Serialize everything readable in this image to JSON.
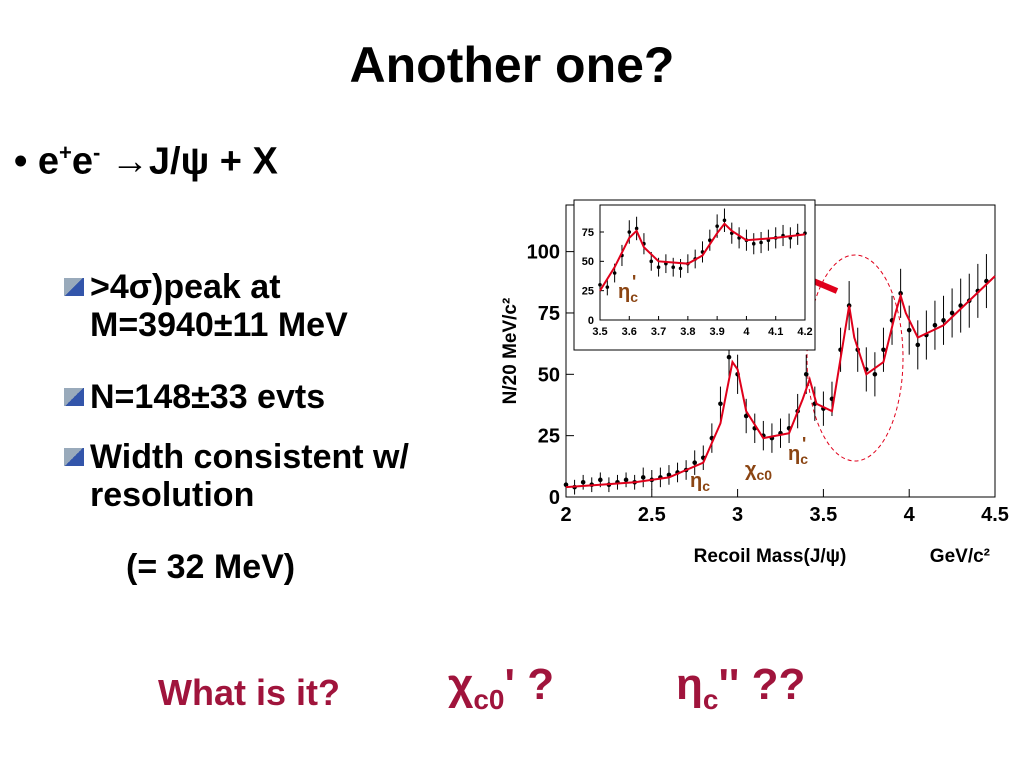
{
  "title": "Another one?",
  "bullet": {
    "parts": [
      "e",
      "+",
      "e",
      "-",
      "→",
      "J/ψ + X"
    ]
  },
  "sub_bullets": [
    ">4σ)peak at M=3940±11 MeV",
    "N=148±33 evts",
    "Width consistent w/ resolution",
    "(= 32 MeV)"
  ],
  "question": {
    "text": "What is it?",
    "option1": {
      "symbol": "χ",
      "sub": "c0",
      "prime": "'",
      "mark": "?"
    },
    "option2": {
      "symbol": "η",
      "sub": "c",
      "prime": "''",
      "mark": "??"
    }
  },
  "chart_data": [
    {
      "type": "scatter",
      "y_label": "N/20 MeV/c²",
      "x_label": "Recoil Mass(J/ψ)",
      "x_unit": "GeV/c²",
      "xlim": [
        2,
        4.5
      ],
      "ylim": [
        0,
        119
      ],
      "xticks": [
        2,
        2.5,
        3,
        3.5,
        4,
        4.5
      ],
      "yticks": [
        0,
        25,
        50,
        75,
        100
      ],
      "series": [
        {
          "color": "#000000",
          "x": [
            2.0,
            2.05,
            2.1,
            2.15,
            2.2,
            2.25,
            2.3,
            2.35,
            2.4,
            2.45,
            2.5,
            2.55,
            2.6,
            2.65,
            2.7,
            2.75,
            2.8,
            2.85,
            2.9,
            2.95,
            3.0,
            3.05,
            3.1,
            3.15,
            3.2,
            3.25,
            3.3,
            3.35,
            3.4,
            3.45,
            3.5,
            3.55,
            3.6,
            3.65,
            3.7,
            3.75,
            3.8,
            3.85,
            3.9,
            3.95,
            4.0,
            4.05,
            4.1,
            4.15,
            4.2,
            4.25,
            4.3,
            4.35,
            4.4,
            4.45
          ],
          "values": [
            5,
            4,
            6,
            5,
            7,
            5,
            6,
            7,
            6,
            8,
            7,
            8,
            9,
            10,
            11,
            14,
            16,
            24,
            38,
            57,
            50,
            33,
            28,
            25,
            24,
            26,
            28,
            35,
            50,
            38,
            36,
            40,
            60,
            78,
            60,
            52,
            50,
            60,
            72,
            83,
            68,
            62,
            66,
            70,
            72,
            75,
            78,
            80,
            84,
            88
          ],
          "errors": [
            3,
            3,
            3,
            3,
            3,
            3,
            3,
            3,
            3,
            4,
            4,
            4,
            4,
            4,
            4,
            5,
            5,
            6,
            7,
            8,
            8,
            7,
            6,
            6,
            6,
            6,
            6,
            7,
            8,
            7,
            7,
            7,
            9,
            10,
            9,
            9,
            9,
            9,
            10,
            10,
            10,
            10,
            10,
            10,
            10,
            10,
            11,
            11,
            11,
            11
          ]
        }
      ],
      "fit": {
        "color": "#e0001b",
        "x": [
          2.0,
          2.2,
          2.4,
          2.6,
          2.8,
          2.9,
          2.97,
          3.0,
          3.05,
          3.15,
          3.3,
          3.38,
          3.42,
          3.46,
          3.55,
          3.62,
          3.65,
          3.68,
          3.75,
          3.85,
          3.92,
          3.95,
          3.98,
          4.05,
          4.2,
          4.5
        ],
        "values": [
          4,
          5,
          6,
          8,
          14,
          30,
          55,
          52,
          35,
          24,
          26,
          40,
          48,
          38,
          35,
          65,
          78,
          65,
          50,
          55,
          75,
          82,
          75,
          65,
          70,
          90
        ]
      },
      "annotations": [
        {
          "symbol": "η",
          "sub": "c"
        },
        {
          "symbol": "χ",
          "sub": "c0"
        },
        {
          "symbol": "η",
          "sub": "c",
          "prime": "'"
        }
      ]
    },
    {
      "type": "scatter",
      "xlim": [
        3.5,
        4.2
      ],
      "ylim": [
        0,
        98
      ],
      "xticks": [
        3.5,
        3.6,
        3.7,
        3.8,
        3.9,
        4,
        4.1,
        4.2
      ],
      "yticks": [
        0,
        25,
        50,
        75
      ],
      "series": [
        {
          "color": "#000000",
          "x": [
            3.5,
            3.525,
            3.55,
            3.575,
            3.6,
            3.625,
            3.65,
            3.675,
            3.7,
            3.725,
            3.75,
            3.775,
            3.8,
            3.825,
            3.85,
            3.875,
            3.9,
            3.925,
            3.95,
            3.975,
            4.0,
            4.025,
            4.05,
            4.075,
            4.1,
            4.125,
            4.15,
            4.175,
            4.2
          ],
          "values": [
            30,
            28,
            40,
            55,
            75,
            78,
            65,
            50,
            45,
            48,
            45,
            44,
            48,
            52,
            58,
            68,
            80,
            85,
            74,
            70,
            68,
            65,
            66,
            68,
            70,
            72,
            70,
            73,
            74
          ],
          "errors": [
            7,
            7,
            8,
            9,
            10,
            10,
            9,
            8,
            8,
            8,
            8,
            8,
            8,
            8,
            9,
            9,
            10,
            10,
            9,
            9,
            9,
            9,
            9,
            9,
            9,
            9,
            9,
            9,
            9
          ]
        }
      ],
      "fit": {
        "color": "#e0001b",
        "x": [
          3.5,
          3.55,
          3.6,
          3.625,
          3.65,
          3.7,
          3.8,
          3.85,
          3.9,
          3.925,
          3.95,
          4.0,
          4.1,
          4.2
        ],
        "values": [
          25,
          45,
          70,
          76,
          62,
          50,
          48,
          55,
          74,
          82,
          76,
          68,
          70,
          73
        ]
      },
      "annotations": [
        {
          "symbol": "η",
          "sub": "c",
          "prime": "'"
        }
      ]
    }
  ]
}
